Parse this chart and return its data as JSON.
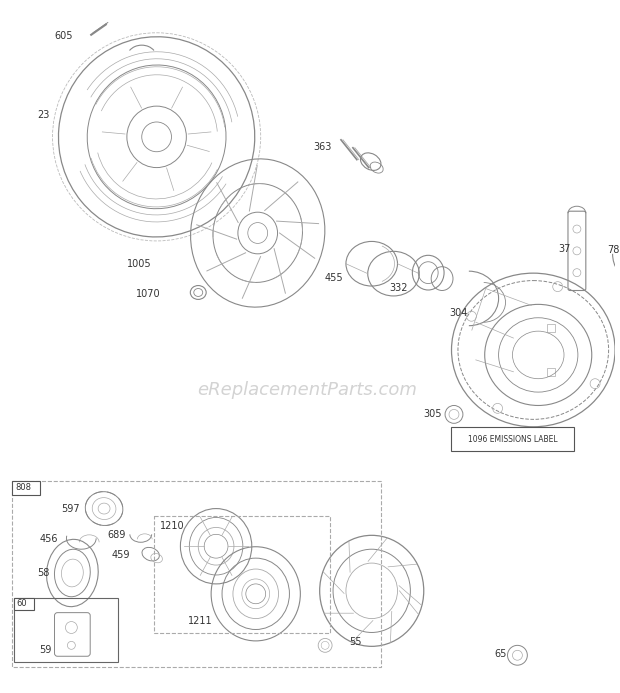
{
  "bg_color": "#ffffff",
  "watermark": "eReplacementParts.com",
  "watermark_color": "#c8c8c8",
  "lc": "#aaaaaa",
  "lc_dark": "#888888"
}
